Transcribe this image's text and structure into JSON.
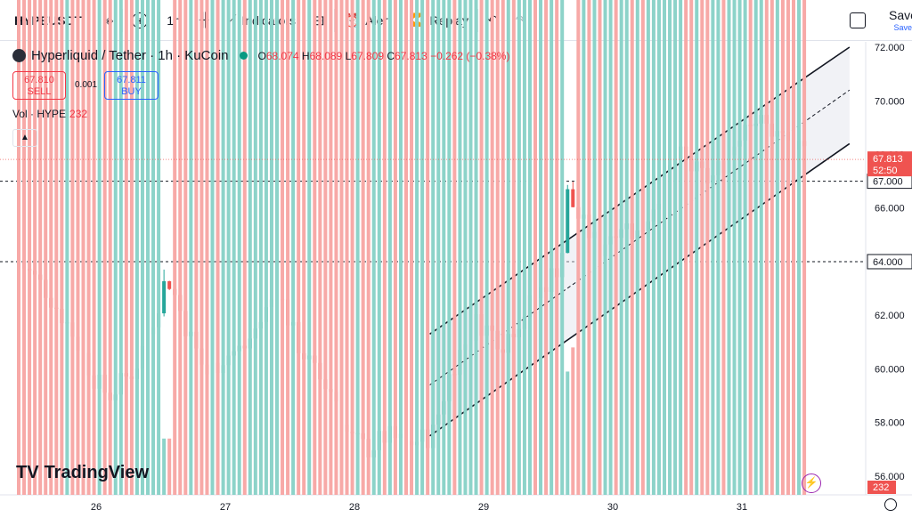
{
  "toolbar": {
    "symbol": "HYPEUSDT",
    "add_icon": "plus-circle-icon",
    "interval": "1h",
    "indicators_label": "Indicators",
    "alert_label": "Alert",
    "replay_label": "Replay",
    "save_label": "Save",
    "save_sub": "Save"
  },
  "legend": {
    "title": "Hyperliquid / Tether · 1h · KuCoin",
    "o_key": "O",
    "o": "68.074",
    "h_key": "H",
    "h": "68.089",
    "l_key": "L",
    "l": "67.809",
    "c_key": "C",
    "c": "67.813",
    "change": "−0.262 (−0.38%)",
    "sell_price": "67.810",
    "sell_label": "SELL",
    "spread": "0.001",
    "buy_price": "67.811",
    "buy_label": "BUY",
    "vol_label": "Vol · HYPE",
    "vol_value": "232",
    "collapse_icon": "chevron-up-icon"
  },
  "brand": {
    "name": "TradingView"
  },
  "colors": {
    "up": "#26a69a",
    "down": "#ef5350",
    "up_vol": "#8cd3c9",
    "down_vol": "#f7a9a7",
    "channel": "#131722",
    "accent": "#2962ff"
  },
  "chart_data": {
    "type": "candlestick",
    "title": "Hyperliquid / Tether · 1h · KuCoin",
    "y_axis": {
      "ylim": [
        55.3,
        72.2
      ],
      "ticks": [
        "56.000",
        "58.000",
        "60.000",
        "62.000",
        "64.000",
        "66.000",
        "68.000",
        "70.000",
        "72.000"
      ]
    },
    "x_axis": {
      "ticks": [
        "26",
        "27",
        "28",
        "29",
        "30",
        "31"
      ]
    },
    "last_price": "67.813",
    "countdown": "52:50",
    "horizontal_lines": [
      {
        "value": 67.0,
        "label": "67.000"
      },
      {
        "value": 64.0,
        "label": "64.000"
      }
    ],
    "current_volume": "232",
    "channel": {
      "upper": [
        [
          "28 14:00",
          61.3
        ],
        [
          "31 20:00",
          72.0
        ]
      ],
      "middle": [
        [
          "28 14:00",
          59.4
        ],
        [
          "31 20:00",
          70.4
        ]
      ],
      "lower": [
        [
          "28 14:00",
          57.5
        ],
        [
          "31 20:00",
          68.4
        ]
      ]
    },
    "close_path": [
      [
        25.4,
        64.0
      ],
      [
        25.6,
        63.0
      ],
      [
        25.8,
        61.5
      ],
      [
        26.0,
        59.5
      ],
      [
        26.1,
        59.0
      ],
      [
        26.3,
        60.0
      ],
      [
        26.45,
        62.0
      ],
      [
        26.55,
        63.5
      ],
      [
        26.7,
        61.5
      ],
      [
        26.85,
        59.8
      ],
      [
        27.0,
        60.5
      ],
      [
        27.15,
        60.8
      ],
      [
        27.3,
        62.0
      ],
      [
        27.4,
        63.0
      ],
      [
        27.55,
        61.0
      ],
      [
        27.7,
        59.8
      ],
      [
        27.85,
        59.0
      ],
      [
        27.95,
        57.5
      ],
      [
        28.1,
        57.0
      ],
      [
        28.25,
        57.5
      ],
      [
        28.4,
        57.2
      ],
      [
        28.6,
        57.5
      ],
      [
        28.75,
        60.0
      ],
      [
        28.95,
        61.8
      ],
      [
        29.15,
        61.0
      ],
      [
        29.3,
        62.0
      ],
      [
        29.45,
        63.0
      ],
      [
        29.6,
        64.0
      ],
      [
        29.65,
        66.5
      ],
      [
        29.75,
        65.5
      ],
      [
        29.9,
        64.5
      ],
      [
        30.05,
        65.5
      ],
      [
        30.2,
        65.0
      ],
      [
        30.35,
        66.5
      ],
      [
        30.5,
        68.0
      ],
      [
        30.6,
        67.5
      ],
      [
        30.75,
        67.0
      ],
      [
        30.9,
        68.0
      ],
      [
        31.05,
        69.5
      ],
      [
        31.2,
        69.0
      ],
      [
        31.35,
        68.5
      ],
      [
        31.5,
        67.8
      ]
    ],
    "volume_spikes": [
      [
        26.55,
        57.4
      ],
      [
        29.65,
        59.9
      ],
      [
        29.7,
        60.8
      ]
    ]
  }
}
